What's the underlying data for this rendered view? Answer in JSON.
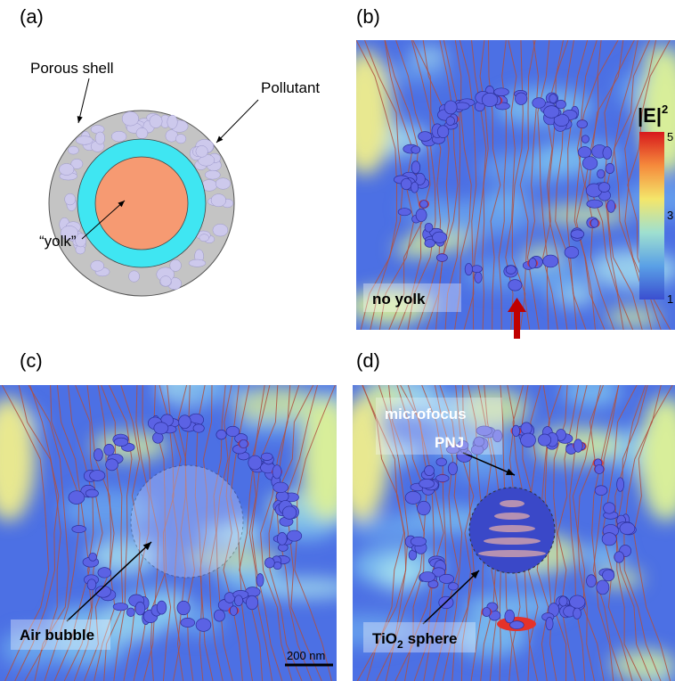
{
  "panels": [
    {
      "label": "(a)",
      "annotations": [
        "Porous shell",
        "Pollutant",
        "“yolk”"
      ]
    },
    {
      "label": "(b)",
      "annotations": [
        "no yolk"
      ],
      "colorbar": {
        "title": "|E|",
        "superscript": "2",
        "ticks": [
          "5",
          "3",
          "1"
        ]
      }
    },
    {
      "label": "(c)",
      "annotations": [
        "Air bubble"
      ],
      "scale_bar": "200 nm"
    },
    {
      "label": "(d)",
      "annotations": [
        "microfocus",
        "PNJ"
      ],
      "sphere_label": {
        "text": "TiO",
        "subscript": "2",
        "suffix": "sphere"
      }
    }
  ]
}
